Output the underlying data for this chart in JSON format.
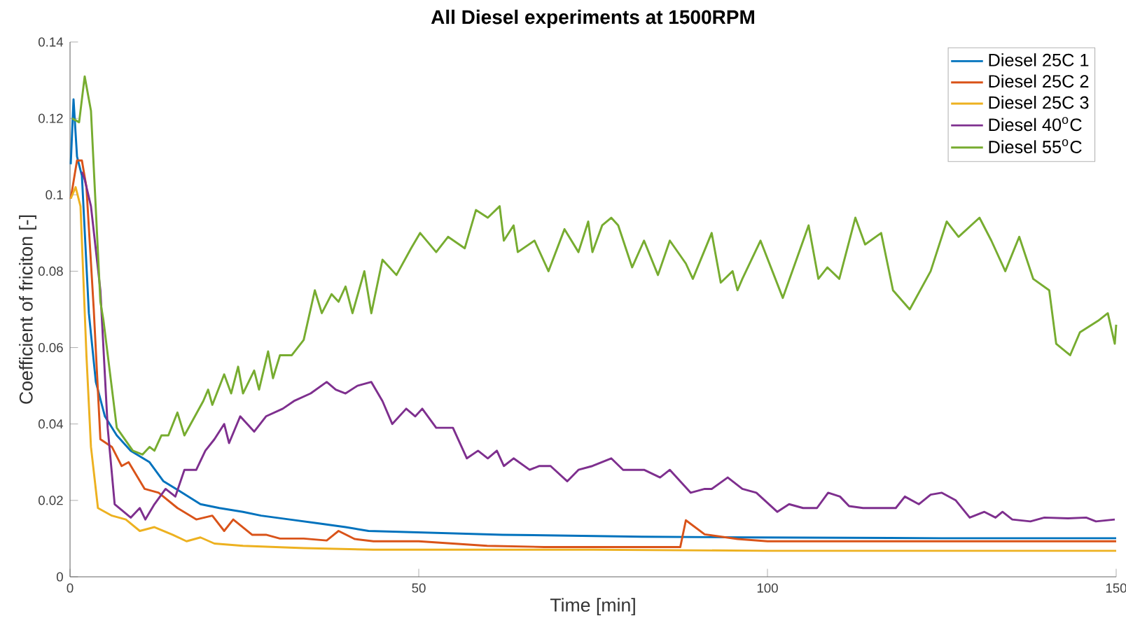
{
  "chart_data": {
    "type": "line",
    "title": "All Diesel experiments at 1500RPM",
    "xlabel": "Time [min]",
    "ylabel": "Coefficient of friciton [-]",
    "xlim": [
      0,
      150
    ],
    "ylim": [
      0,
      0.14
    ],
    "xticks": [
      0,
      50,
      100,
      150
    ],
    "yticks": [
      0,
      0.02,
      0.04,
      0.06,
      0.08,
      0.1,
      0.12,
      0.14
    ],
    "legend": "top right",
    "series": [
      {
        "name": "Diesel 25C 1",
        "color": "#0072bd",
        "x": [
          0.1,
          0.5,
          1.0,
          1.7,
          2.7,
          3.7,
          5.0,
          6.7,
          8.7,
          11.4,
          13.4,
          16.1,
          18.7,
          21.4,
          24.8,
          27.4,
          31.5,
          35.5,
          39.5,
          42.8,
          62,
          82,
          98,
          125,
          150
        ],
        "values": [
          0.108,
          0.125,
          0.11,
          0.105,
          0.069,
          0.051,
          0.042,
          0.037,
          0.033,
          0.03,
          0.025,
          0.022,
          0.019,
          0.018,
          0.017,
          0.016,
          0.015,
          0.014,
          0.013,
          0.012,
          0.011,
          0.0105,
          0.0103,
          0.0101,
          0.0101
        ]
      },
      {
        "name": "Diesel 25C 2",
        "color": "#d95319",
        "x": [
          0.1,
          1.0,
          1.7,
          2.35,
          3.4,
          4.35,
          6.0,
          7.4,
          8.4,
          10.7,
          12.7,
          15.4,
          18.1,
          20.4,
          22.1,
          23.4,
          26.1,
          28.1,
          30.1,
          33.5,
          36.8,
          38.5,
          40.8,
          43.5,
          50,
          59.8,
          68,
          87.5,
          88.3,
          91,
          95.7,
          100,
          150
        ],
        "values": [
          0.099,
          0.109,
          0.109,
          0.102,
          0.07,
          0.036,
          0.034,
          0.029,
          0.03,
          0.023,
          0.022,
          0.018,
          0.015,
          0.016,
          0.012,
          0.015,
          0.011,
          0.011,
          0.01,
          0.01,
          0.0095,
          0.012,
          0.0099,
          0.0093,
          0.0093,
          0.0081,
          0.0078,
          0.0078,
          0.0148,
          0.0111,
          0.0099,
          0.0093,
          0.0093
        ]
      },
      {
        "name": "Diesel 25C 3",
        "color": "#edb120",
        "x": [
          0.1,
          0.8,
          1.5,
          2.35,
          3.0,
          4.0,
          6.0,
          8.0,
          10.0,
          12.1,
          14.7,
          16.7,
          18.7,
          20.7,
          24.8,
          33.5,
          43.5,
          75,
          100,
          150
        ],
        "values": [
          0.099,
          0.102,
          0.097,
          0.058,
          0.034,
          0.018,
          0.016,
          0.015,
          0.012,
          0.013,
          0.011,
          0.0093,
          0.0103,
          0.0087,
          0.0081,
          0.0075,
          0.0071,
          0.0071,
          0.0068,
          0.0068
        ]
      },
      {
        "name": "Diesel 40$^{o}$C",
        "color": "#7e2f8e",
        "x": [
          1.7,
          2.1,
          3.0,
          4.35,
          5.4,
          6.4,
          8.7,
          10.0,
          10.8,
          12.1,
          13.7,
          15.1,
          16.4,
          18.1,
          19.4,
          20.7,
          22.1,
          22.8,
          24.4,
          26.4,
          28.1,
          30.5,
          32.1,
          34.5,
          36.8,
          38.1,
          39.5,
          41.2,
          43.2,
          44.8,
          46.2,
          48.2,
          49.5,
          50.5,
          52.5,
          54.9,
          56.9,
          58.5,
          59.9,
          61.2,
          62.2,
          63.6,
          65.9,
          67.3,
          68.9,
          71.3,
          72.9,
          74.9,
          77.6,
          79.3,
          82.3,
          84.6,
          86.0,
          89.0,
          91.0,
          92.0,
          94.3,
          96.4,
          98.4,
          101.4,
          103.1,
          105.1,
          107.1,
          108.7,
          110.4,
          111.7,
          113.7,
          116.4,
          118.4,
          119.7,
          121.7,
          123.4,
          125.0,
          127.0,
          129.0,
          131.1,
          132.7,
          133.7,
          135.1,
          137.7,
          139.7,
          143.1,
          145.7,
          147.1,
          149.8
        ],
        "values": [
          0.106,
          0.104,
          0.097,
          0.075,
          0.039,
          0.019,
          0.0155,
          0.018,
          0.015,
          0.019,
          0.023,
          0.021,
          0.028,
          0.028,
          0.033,
          0.036,
          0.04,
          0.035,
          0.042,
          0.038,
          0.042,
          0.044,
          0.046,
          0.048,
          0.051,
          0.049,
          0.048,
          0.05,
          0.051,
          0.046,
          0.04,
          0.044,
          0.042,
          0.044,
          0.039,
          0.039,
          0.031,
          0.033,
          0.031,
          0.033,
          0.029,
          0.031,
          0.028,
          0.029,
          0.029,
          0.025,
          0.028,
          0.029,
          0.031,
          0.028,
          0.028,
          0.026,
          0.028,
          0.022,
          0.023,
          0.023,
          0.026,
          0.023,
          0.022,
          0.017,
          0.019,
          0.018,
          0.018,
          0.022,
          0.021,
          0.0185,
          0.018,
          0.018,
          0.018,
          0.021,
          0.019,
          0.0215,
          0.022,
          0.02,
          0.0155,
          0.017,
          0.0155,
          0.017,
          0.015,
          0.0145,
          0.0155,
          0.0153,
          0.0155,
          0.0145,
          0.015
        ]
      },
      {
        "name": "Diesel 55$^{o}$C",
        "color": "#77ac30",
        "x": [
          0.3,
          1.3,
          2.1,
          3.0,
          4.35,
          4.8,
          6.7,
          9.0,
          10.4,
          11.4,
          12.1,
          13.1,
          14.1,
          15.4,
          16.4,
          19.1,
          19.8,
          20.4,
          22.1,
          23.1,
          24.1,
          24.8,
          26.4,
          27.1,
          28.4,
          29.1,
          30.1,
          31.8,
          33.5,
          35.1,
          36.1,
          37.5,
          38.5,
          39.5,
          40.5,
          42.2,
          43.2,
          44.8,
          46.8,
          48.9,
          50.2,
          52.5,
          54.2,
          56.6,
          58.2,
          59.9,
          61.6,
          62.2,
          63.6,
          64.2,
          66.6,
          68.6,
          70.9,
          72.9,
          74.3,
          74.9,
          76.3,
          77.6,
          78.6,
          80.6,
          82.3,
          84.3,
          86.0,
          88.3,
          89.3,
          92.0,
          93.3,
          95.0,
          95.7,
          96.4,
          99.0,
          102.2,
          105.9,
          107.3,
          108.6,
          110.3,
          112.6,
          114.0,
          116.3,
          118.0,
          120.4,
          123.4,
          125.7,
          127.4,
          130.4,
          132.1,
          134.1,
          136.1,
          138.1,
          140.4,
          141.4,
          143.4,
          144.8,
          147.4,
          148.8,
          149.8,
          150
        ],
        "values": [
          0.12,
          0.119,
          0.131,
          0.122,
          0.072,
          0.067,
          0.039,
          0.033,
          0.032,
          0.034,
          0.033,
          0.037,
          0.037,
          0.043,
          0.037,
          0.046,
          0.049,
          0.045,
          0.053,
          0.048,
          0.055,
          0.048,
          0.054,
          0.049,
          0.059,
          0.052,
          0.058,
          0.058,
          0.062,
          0.075,
          0.069,
          0.074,
          0.072,
          0.076,
          0.069,
          0.08,
          0.069,
          0.083,
          0.079,
          0.086,
          0.09,
          0.085,
          0.089,
          0.086,
          0.096,
          0.094,
          0.097,
          0.088,
          0.092,
          0.085,
          0.088,
          0.08,
          0.091,
          0.085,
          0.093,
          0.085,
          0.092,
          0.094,
          0.092,
          0.081,
          0.088,
          0.079,
          0.088,
          0.082,
          0.078,
          0.09,
          0.077,
          0.08,
          0.075,
          0.078,
          0.088,
          0.073,
          0.092,
          0.078,
          0.081,
          0.078,
          0.094,
          0.087,
          0.09,
          0.075,
          0.07,
          0.08,
          0.093,
          0.089,
          0.094,
          0.088,
          0.08,
          0.089,
          0.078,
          0.075,
          0.061,
          0.058,
          0.064,
          0.067,
          0.069,
          0.061,
          0.066
        ]
      }
    ]
  }
}
